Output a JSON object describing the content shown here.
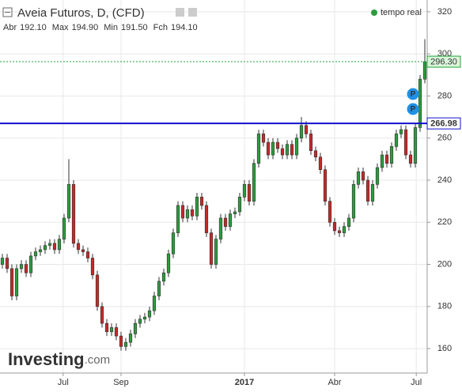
{
  "chart_data": {
    "type": "candlestick",
    "title": "Aveia Futuros, D, (CFD)",
    "status": "tempo real",
    "quote": [
      {
        "label": "Abr",
        "value": "192.10"
      },
      {
        "label": "Max",
        "value": "194.90"
      },
      {
        "label": "Min",
        "value": "191.50"
      },
      {
        "label": "Fch",
        "value": "194.10"
      }
    ],
    "logo": "Investing",
    "logo_suffix": ".com",
    "markers": [
      "P",
      "P"
    ],
    "up_color": "#2e9b3e",
    "down_color": "#c42a2a",
    "open": [
      200,
      203,
      198,
      185,
      198,
      200,
      196,
      204,
      206,
      207,
      209,
      210,
      207,
      212,
      222,
      238,
      210,
      207,
      206,
      203,
      195,
      180,
      172,
      168,
      170,
      166,
      161,
      163,
      167,
      172,
      174,
      175,
      178,
      185,
      192,
      196,
      205,
      215,
      228,
      222,
      226,
      223,
      232,
      228,
      215,
      200,
      212,
      222,
      218,
      224,
      225,
      232,
      238,
      230,
      248,
      262,
      258,
      252,
      258,
      255,
      252,
      257,
      252,
      260,
      266,
      262,
      254,
      251,
      245,
      230,
      220,
      216,
      215,
      218,
      222,
      238,
      244,
      240,
      230,
      238,
      246,
      252,
      248,
      256,
      262,
      264,
      252,
      248,
      265,
      288
    ],
    "high": [
      205,
      205,
      200,
      200,
      202,
      202,
      206,
      208,
      209,
      211,
      212,
      212,
      214,
      224,
      250,
      240,
      212,
      209,
      208,
      205,
      197,
      182,
      174,
      172,
      172,
      168,
      165,
      169,
      174,
      176,
      177,
      180,
      187,
      194,
      198,
      207,
      217,
      230,
      230,
      228,
      228,
      234,
      234,
      230,
      217,
      214,
      224,
      224,
      226,
      227,
      234,
      240,
      240,
      250,
      264,
      264,
      260,
      260,
      260,
      257,
      259,
      259,
      262,
      270,
      268,
      264,
      256,
      253,
      247,
      232,
      222,
      218,
      220,
      224,
      240,
      246,
      246,
      242,
      240,
      248,
      254,
      254,
      258,
      264,
      266,
      266,
      254,
      267,
      290,
      307
    ],
    "low": [
      198,
      196,
      183,
      183,
      196,
      194,
      194,
      202,
      204,
      205,
      207,
      205,
      205,
      210,
      220,
      208,
      205,
      204,
      201,
      193,
      178,
      170,
      166,
      166,
      164,
      159,
      159,
      161,
      165,
      170,
      172,
      173,
      176,
      183,
      190,
      194,
      203,
      213,
      220,
      220,
      221,
      221,
      226,
      213,
      198,
      198,
      210,
      216,
      216,
      222,
      223,
      230,
      228,
      228,
      246,
      256,
      250,
      250,
      253,
      250,
      250,
      250,
      250,
      258,
      260,
      252,
      249,
      243,
      228,
      218,
      214,
      213,
      213,
      216,
      220,
      236,
      238,
      228,
      228,
      236,
      244,
      246,
      246,
      254,
      260,
      250,
      246,
      246,
      263,
      286
    ],
    "close": [
      203,
      198,
      185,
      198,
      200,
      196,
      204,
      206,
      207,
      209,
      210,
      207,
      212,
      222,
      238,
      210,
      207,
      206,
      203,
      195,
      180,
      172,
      168,
      170,
      166,
      161,
      163,
      167,
      172,
      174,
      175,
      178,
      185,
      192,
      196,
      205,
      215,
      228,
      222,
      226,
      223,
      232,
      228,
      215,
      200,
      212,
      222,
      218,
      224,
      225,
      232,
      238,
      230,
      248,
      262,
      258,
      252,
      258,
      255,
      252,
      257,
      252,
      260,
      266,
      262,
      254,
      251,
      245,
      230,
      220,
      216,
      215,
      218,
      222,
      238,
      244,
      240,
      230,
      238,
      246,
      252,
      248,
      256,
      262,
      264,
      252,
      248,
      265,
      288,
      296.3
    ],
    "xlim": [
      -0.5,
      89.5
    ],
    "xticks": [
      {
        "value": 12.8,
        "label": "Jul"
      },
      {
        "value": 25,
        "label": "Sep"
      },
      {
        "value": 51,
        "label": "2017"
      },
      {
        "value": 70,
        "label": "Abr"
      },
      {
        "value": 87.2,
        "label": "Jul"
      }
    ],
    "ylim": [
      148.4,
      325.6
    ],
    "yticks": [
      160,
      180,
      200,
      220,
      240,
      260,
      280,
      300,
      320
    ],
    "grid": true,
    "price_lines": [
      {
        "value": 296.3,
        "label": "296.30",
        "color": "#22a33a",
        "style": "dotted"
      },
      {
        "value": 266.98,
        "color": "#1010cc",
        "style": "solid"
      }
    ]
  }
}
